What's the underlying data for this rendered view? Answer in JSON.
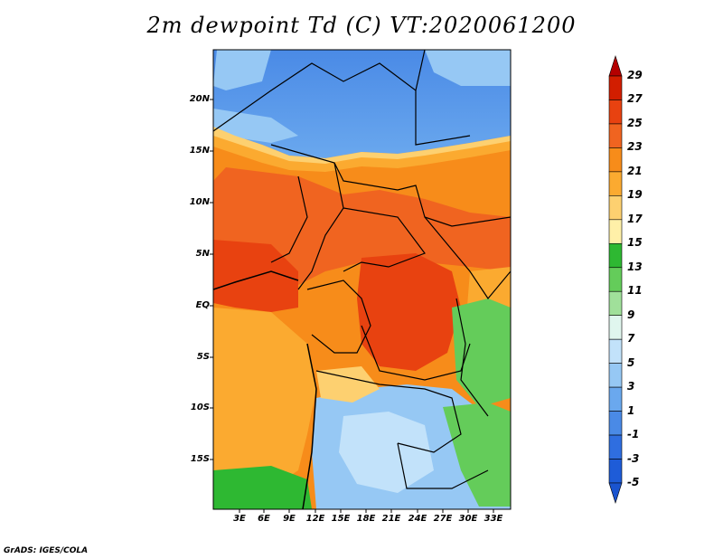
{
  "title": "2m dewpoint Td (C) VT:2020061200",
  "credit": "GrADS: IGES/COLA",
  "map": {
    "lat_labels": [
      "20N",
      "15N",
      "10N",
      "5N",
      "EQ",
      "5S",
      "10S",
      "15S"
    ],
    "lon_labels": [
      "3E",
      "6E",
      "9E",
      "12E",
      "15E",
      "18E",
      "21E",
      "24E",
      "27E",
      "30E",
      "33E"
    ],
    "region": "West-Central Africa"
  },
  "colorbar": {
    "labels": [
      "29",
      "27",
      "25",
      "23",
      "21",
      "19",
      "17",
      "15",
      "13",
      "11",
      "9",
      "7",
      "5",
      "3",
      "1",
      "-1",
      "-3",
      "-5"
    ],
    "colors": [
      "#b40000",
      "#d21e00",
      "#e84210",
      "#f06420",
      "#f78c1a",
      "#fbaa30",
      "#fdd070",
      "#fff0a8",
      "#2eb832",
      "#64cc5a",
      "#a0e09a",
      "#e0f6ee",
      "#c2e2fa",
      "#96c8f4",
      "#6aa8ee",
      "#4a8ae6",
      "#2f6ee0",
      "#1e5cd8",
      "#1a54cf"
    ]
  }
}
